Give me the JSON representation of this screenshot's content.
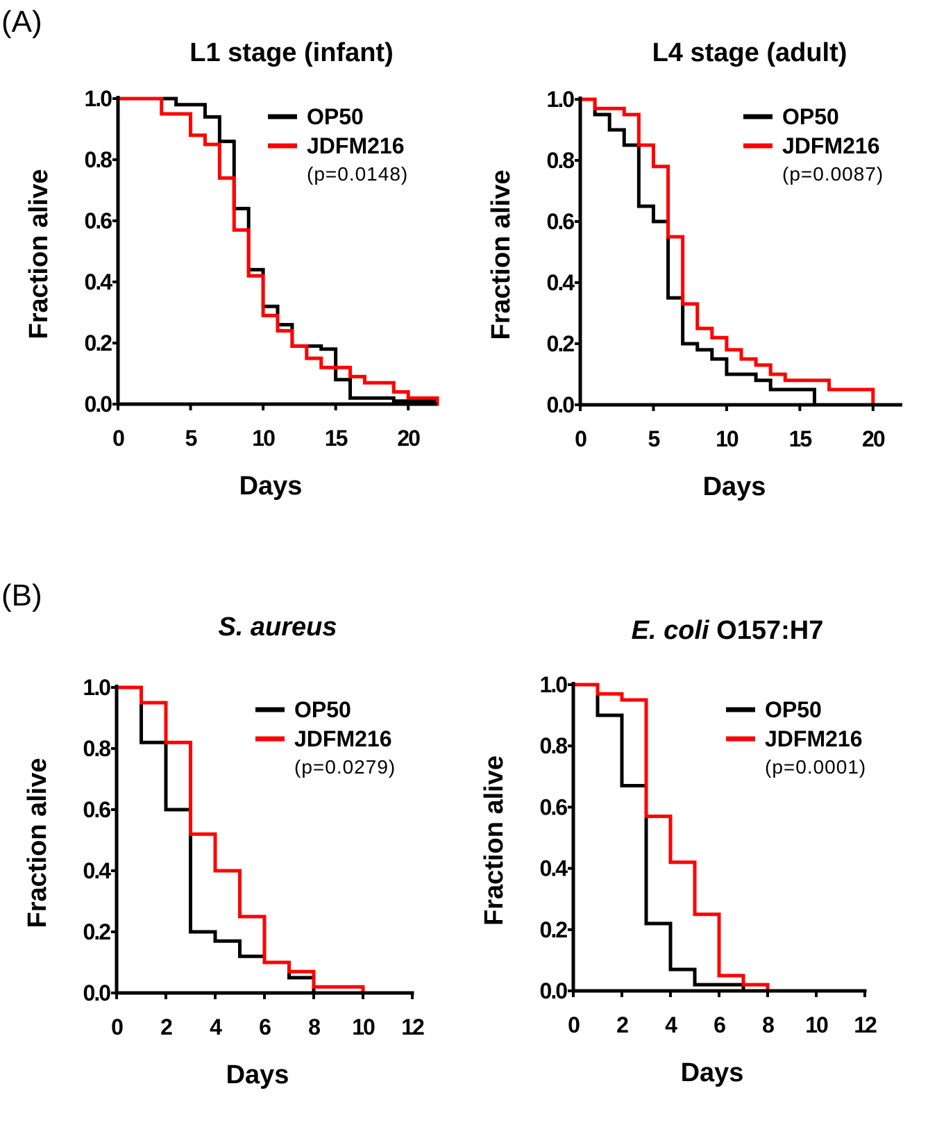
{
  "panel_labels": [
    "(A)",
    "(B)"
  ],
  "colors": {
    "OP50": "#000000",
    "JDFM216": "#ff0000",
    "axis": "#000000"
  },
  "chart_data": [
    {
      "type": "line",
      "step": true,
      "title": "L1 stage (infant)",
      "xlabel": "Days",
      "ylabel": "Fraction alive",
      "xlim": [
        0,
        22
      ],
      "ylim": [
        0,
        1
      ],
      "xticks": [
        0,
        5,
        10,
        15,
        20
      ],
      "xtick_labels": [
        "0",
        "5",
        "10",
        "15",
        "20"
      ],
      "yticks": [
        0,
        0.2,
        0.4,
        0.6,
        0.8,
        1.0
      ],
      "ytick_labels": [
        "0.0",
        "0.2",
        "0.4",
        "0.6",
        "0.8",
        "1.0"
      ],
      "legend": [
        "OP50",
        "JDFM216"
      ],
      "pvalue": "(p=0.0148)",
      "series": [
        {
          "name": "OP50",
          "x": [
            0,
            4,
            6,
            7,
            8,
            9,
            10,
            11,
            12,
            13,
            14,
            15,
            16,
            19,
            22
          ],
          "y": [
            1.0,
            0.98,
            0.94,
            0.86,
            0.64,
            0.44,
            0.32,
            0.26,
            0.19,
            0.19,
            0.18,
            0.08,
            0.02,
            0.01,
            0.01
          ]
        },
        {
          "name": "JDFM216",
          "x": [
            0,
            3,
            5,
            6,
            7,
            8,
            9,
            10,
            11,
            12,
            13,
            14,
            15,
            16,
            17,
            19,
            20,
            22
          ],
          "y": [
            1.0,
            0.95,
            0.88,
            0.85,
            0.74,
            0.57,
            0.42,
            0.29,
            0.24,
            0.19,
            0.15,
            0.12,
            0.12,
            0.09,
            0.07,
            0.04,
            0.02,
            0.0
          ]
        }
      ]
    },
    {
      "type": "line",
      "step": true,
      "title": "L4 stage (adult)",
      "xlabel": "Days",
      "ylabel": "Fraction alive",
      "xlim": [
        0,
        22
      ],
      "ylim": [
        0,
        1
      ],
      "xticks": [
        0,
        5,
        10,
        15,
        20
      ],
      "xtick_labels": [
        "0",
        "5",
        "10",
        "15",
        "20"
      ],
      "yticks": [
        0,
        0.2,
        0.4,
        0.6,
        0.8,
        1.0
      ],
      "ytick_labels": [
        "0.0",
        "0.2",
        "0.4",
        "0.6",
        "0.8",
        "1.0"
      ],
      "legend": [
        "OP50",
        "JDFM216"
      ],
      "pvalue": "(p=0.0087)",
      "series": [
        {
          "name": "OP50",
          "x": [
            0,
            1,
            2,
            3,
            4,
            5,
            6,
            7,
            8,
            9,
            10,
            11,
            12,
            13,
            16
          ],
          "y": [
            1.0,
            0.95,
            0.9,
            0.85,
            0.65,
            0.6,
            0.35,
            0.2,
            0.18,
            0.15,
            0.1,
            0.1,
            0.08,
            0.05,
            0.0
          ]
        },
        {
          "name": "JDFM216",
          "x": [
            0,
            1,
            3,
            4,
            5,
            6,
            7,
            8,
            9,
            10,
            11,
            12,
            13,
            14,
            17,
            20
          ],
          "y": [
            1.0,
            0.97,
            0.95,
            0.85,
            0.78,
            0.55,
            0.33,
            0.25,
            0.22,
            0.18,
            0.15,
            0.13,
            0.1,
            0.08,
            0.05,
            0.0
          ]
        }
      ]
    },
    {
      "type": "line",
      "step": true,
      "title": "S. aureus",
      "title_parts": [
        {
          "text": "S. aureus",
          "italic": true
        }
      ],
      "xlabel": "Days",
      "ylabel": "Fraction alive",
      "xlim": [
        0,
        12
      ],
      "ylim": [
        0,
        1
      ],
      "xticks": [
        0,
        2,
        4,
        6,
        8,
        10,
        12
      ],
      "xtick_labels": [
        "0",
        "2",
        "4",
        "6",
        "8",
        "10",
        "12"
      ],
      "yticks": [
        0,
        0.2,
        0.4,
        0.6,
        0.8,
        1.0
      ],
      "ytick_labels": [
        "0.0",
        "0.2",
        "0.4",
        "0.6",
        "0.8",
        "1.0"
      ],
      "legend": [
        "OP50",
        "JDFM216"
      ],
      "pvalue": "(p=0.0279)",
      "series": [
        {
          "name": "OP50",
          "x": [
            0,
            1,
            2,
            3,
            4,
            5,
            6,
            7,
            8,
            12
          ],
          "y": [
            1.0,
            0.82,
            0.6,
            0.2,
            0.17,
            0.12,
            0.1,
            0.05,
            0.0,
            0.0
          ]
        },
        {
          "name": "JDFM216",
          "x": [
            0,
            1,
            2,
            3,
            4,
            5,
            6,
            7,
            8,
            10
          ],
          "y": [
            1.0,
            0.95,
            0.82,
            0.52,
            0.4,
            0.25,
            0.1,
            0.07,
            0.02,
            0.0
          ]
        }
      ]
    },
    {
      "type": "line",
      "step": true,
      "title": "E. coli O157:H7",
      "title_parts": [
        {
          "text": "E. coli",
          "italic": true
        },
        {
          "text": " O157:H7",
          "italic": false
        }
      ],
      "xlabel": "Days",
      "ylabel": "Fraction alive",
      "xlim": [
        0,
        12
      ],
      "ylim": [
        0,
        1
      ],
      "xticks": [
        0,
        2,
        4,
        6,
        8,
        10,
        12
      ],
      "xtick_labels": [
        "0",
        "2",
        "4",
        "6",
        "8",
        "10",
        "12"
      ],
      "yticks": [
        0,
        0.2,
        0.4,
        0.6,
        0.8,
        1.0
      ],
      "ytick_labels": [
        "0.0",
        "0.2",
        "0.4",
        "0.6",
        "0.8",
        "1.0"
      ],
      "legend": [
        "OP50",
        "JDFM216"
      ],
      "pvalue": "(p=0.0001)",
      "series": [
        {
          "name": "OP50",
          "x": [
            0,
            1,
            2,
            3,
            4,
            5,
            6,
            7,
            12
          ],
          "y": [
            1.0,
            0.9,
            0.67,
            0.22,
            0.07,
            0.02,
            0.02,
            0.0,
            0.0
          ]
        },
        {
          "name": "JDFM216",
          "x": [
            0,
            1,
            2,
            3,
            4,
            5,
            6,
            7,
            8
          ],
          "y": [
            1.0,
            0.97,
            0.95,
            0.57,
            0.42,
            0.25,
            0.05,
            0.02,
            0.0
          ]
        }
      ]
    }
  ]
}
